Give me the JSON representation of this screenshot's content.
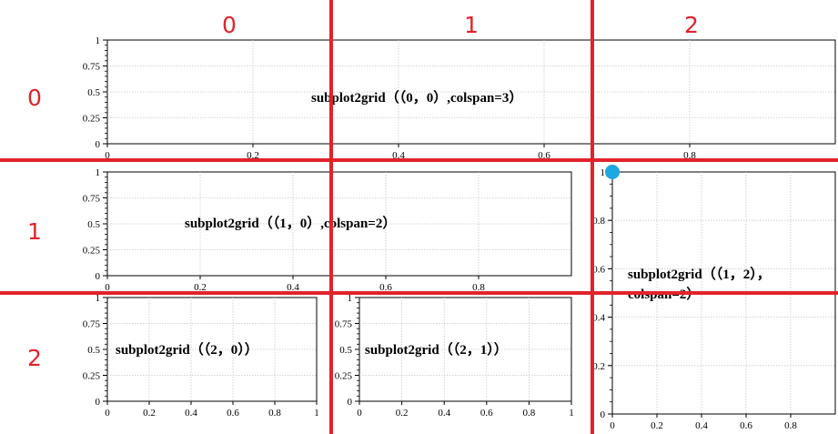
{
  "chart_data": [
    {
      "type": "line",
      "id": "ax0",
      "annotation": "subplot2grid（（0，0）,colspan=3）",
      "xlim": [
        0,
        1
      ],
      "ylim": [
        0,
        1
      ],
      "xticks": [
        "0",
        "0.2",
        "0.4",
        "0.6",
        "0.8"
      ],
      "yticks": [
        "0",
        "0.25",
        "0.5",
        "0.75",
        "1"
      ],
      "grid": true,
      "series": []
    },
    {
      "type": "line",
      "id": "ax1",
      "annotation": "subplot2grid（（1，0）,colspan=2）",
      "xlim": [
        0,
        1
      ],
      "ylim": [
        0,
        1
      ],
      "xticks": [
        "0",
        "0.2",
        "0.4",
        "0.6",
        "0.8"
      ],
      "yticks": [
        "0",
        "0.25",
        "0.5",
        "0.75",
        "1"
      ],
      "grid": true,
      "series": []
    },
    {
      "type": "line",
      "id": "ax2",
      "annotation": "subplot2grid（（1，2），colspan=2）",
      "xlim": [
        0,
        1
      ],
      "ylim": [
        0,
        1
      ],
      "xticks": [
        "0",
        "0.2",
        "0.4",
        "0.6",
        "0.8"
      ],
      "yticks": [
        "0",
        "0.2",
        "0.4",
        "0.6",
        "0.8",
        "1"
      ],
      "grid": true,
      "series": []
    },
    {
      "type": "line",
      "id": "ax3",
      "annotation": "subplot2grid（（2，0））",
      "xlim": [
        0,
        1
      ],
      "ylim": [
        0,
        1
      ],
      "xticks": [
        "0",
        "0.2",
        "0.4",
        "0.6",
        "0.8",
        "1"
      ],
      "yticks": [
        "0",
        "0.25",
        "0.5",
        "0.75",
        "1"
      ],
      "grid": true,
      "series": []
    },
    {
      "type": "line",
      "id": "ax4",
      "annotation": "subplot2grid（（2，1））",
      "xlim": [
        0,
        1
      ],
      "ylim": [
        0,
        1
      ],
      "xticks": [
        "0",
        "0.2",
        "0.4",
        "0.6",
        "0.8",
        "1"
      ],
      "yticks": [
        "0",
        "0.25",
        "0.5",
        "0.75",
        "1"
      ],
      "grid": true,
      "series": []
    }
  ],
  "overlay": {
    "column_labels": [
      "0",
      "1",
      "2"
    ],
    "row_labels": [
      "0",
      "1",
      "2"
    ],
    "line_color": "#e1232b",
    "marker_color": "#1ea7e1"
  }
}
